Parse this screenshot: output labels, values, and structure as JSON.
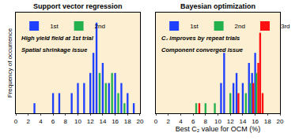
{
  "chart_data": [
    {
      "type": "bar",
      "title": "Support vector regression",
      "y_label": "Frequency of occurrence",
      "xlim": [
        0,
        20
      ],
      "xticks": [
        0,
        2,
        4,
        6,
        8,
        10,
        12,
        14,
        16,
        18,
        20
      ],
      "ylim": [
        0,
        10
      ],
      "tick_labels": "x",
      "legend": "upper left",
      "annotations": [
        "High yield field at 1st trial",
        "Spatial shrinkage issue"
      ],
      "series": [
        {
          "name": "1st",
          "color": "#2040ff",
          "x": [
            3,
            6,
            7,
            9,
            10,
            11,
            12,
            12.5,
            13,
            14,
            15,
            16,
            17,
            18,
            19
          ],
          "values": [
            1,
            2,
            2,
            2,
            3,
            3,
            4,
            6,
            9,
            5,
            3,
            4,
            3,
            2,
            1
          ]
        },
        {
          "name": "2nd",
          "color": "#22b14c",
          "x": [
            13.5,
            14.5,
            15.5,
            16.5,
            17.5
          ],
          "values": [
            4,
            3,
            4,
            2,
            1
          ]
        }
      ]
    },
    {
      "type": "bar",
      "title": "Bayesian optimization",
      "x_label": "Best C₂ value for OCM (%)",
      "xlim": [
        0,
        20
      ],
      "xticks": [
        0,
        2,
        4,
        6,
        8,
        10,
        12,
        14,
        16,
        18,
        20
      ],
      "ylim": [
        0,
        10
      ],
      "tick_labels": "x",
      "legend": "upper left",
      "annotations": [
        "C₂ improves by repeat trials",
        "Component converged issue"
      ],
      "series": [
        {
          "name": "1st",
          "color": "#2040ff",
          "x": [
            10.5,
            11,
            12.5,
            13,
            14,
            15,
            15.5,
            16
          ],
          "values": [
            3,
            6,
            3,
            4,
            3,
            5,
            4,
            6
          ]
        },
        {
          "name": "2nd",
          "color": "#22b14c",
          "x": [
            6.5,
            8,
            9.5,
            12,
            14.5,
            15.2,
            16.2
          ],
          "values": [
            1,
            1,
            1,
            2,
            2,
            3,
            4
          ]
        },
        {
          "name": "3rd",
          "color": "#ff1010",
          "x": [
            7,
            13.3,
            15.7,
            16.5,
            16.8,
            17.2
          ],
          "values": [
            1,
            2,
            3,
            5,
            8,
            2
          ]
        }
      ]
    }
  ]
}
